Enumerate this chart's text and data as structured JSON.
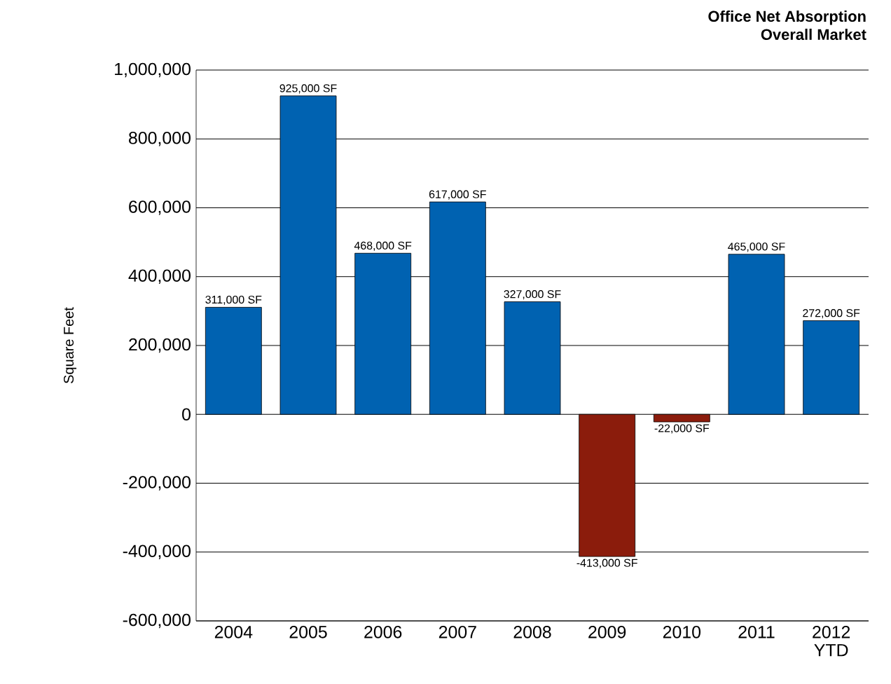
{
  "chart_data": {
    "type": "bar",
    "title": "Office Net Absorption",
    "subtitle": "Overall Market",
    "ylabel": "Square Feet",
    "categories": [
      "2004",
      "2005",
      "2006",
      "2007",
      "2008",
      "2009",
      "2010",
      "2011",
      "2012 YTD"
    ],
    "values": [
      311000,
      925000,
      468000,
      617000,
      327000,
      -413000,
      -22000,
      465000,
      272000
    ],
    "colors": [
      "#0062b1",
      "#0062b1",
      "#0062b1",
      "#0062b1",
      "#0062b1",
      "#8b1c0c",
      "#8b1c0c",
      "#0062b1",
      "#0062b1"
    ],
    "value_labels": [
      "311,000 SF",
      "925,000 SF",
      "468,000 SF",
      "617,000 SF",
      "327,000 SF",
      "-413,000 SF",
      "-22,000 SF",
      "465,000 SF",
      "272,000 SF"
    ],
    "ylim": [
      -600000,
      1000000
    ],
    "yticks": [
      {
        "value": -600000,
        "label": "-600,000"
      },
      {
        "value": -400000,
        "label": "-400,000"
      },
      {
        "value": -200000,
        "label": "-200,000"
      },
      0,
      {
        "value": 200000,
        "label": "200,000"
      },
      {
        "value": 400000,
        "label": "400,000"
      },
      {
        "value": 600000,
        "label": "600,000"
      },
      {
        "value": 800000,
        "label": "800,000"
      },
      {
        "value": 1000000,
        "label": "1,000,000"
      }
    ],
    "grid": "y"
  }
}
